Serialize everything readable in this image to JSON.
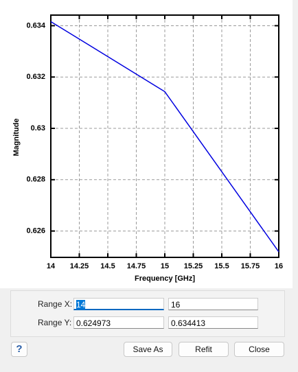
{
  "chart_data": {
    "type": "line",
    "x_label": "Frequency [GHz]",
    "y_label": "Magnitude",
    "x": [
      14,
      15,
      16
    ],
    "series": [
      {
        "color": "#0000e0",
        "values": [
          0.63416,
          0.63143,
          0.62519
        ]
      }
    ],
    "xlim": [
      14,
      16
    ],
    "xticks": [
      14,
      14.25,
      14.5,
      14.75,
      15,
      15.25,
      15.5,
      15.75,
      16
    ],
    "ylim": [
      0.624973,
      0.634413
    ],
    "yticks": [
      0.626,
      0.628,
      0.63,
      0.632,
      0.634
    ],
    "grid": true
  },
  "range": {
    "x_label": "Range X:",
    "x_min": "14",
    "x_max": "16",
    "y_label": "Range Y:",
    "y_min": "0.624973",
    "y_max": "0.634413"
  },
  "buttons": {
    "help": "?",
    "save_as": "Save As",
    "refit": "Refit",
    "close": "Close"
  }
}
